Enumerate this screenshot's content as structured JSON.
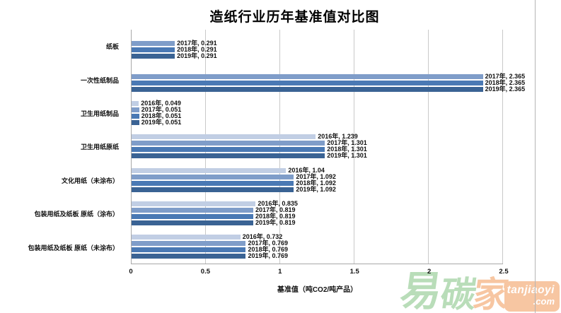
{
  "chart_data": {
    "type": "bar",
    "orientation": "horizontal",
    "title": "造纸行业历年基准值对比图",
    "xlabel": "基准值（吨CO2/吨产品）",
    "xlim": [
      0,
      2.5
    ],
    "xticks": [
      "0",
      "0.5",
      "1",
      "1.5",
      "2",
      "2.5"
    ],
    "grid": true,
    "legend": false,
    "series_colors": [
      {
        "name": "2016年",
        "color": "#c1cee4"
      },
      {
        "name": "2017年",
        "color": "#7f9dc9"
      },
      {
        "name": "2018年",
        "color": "#4a79b4"
      },
      {
        "name": "2019年",
        "color": "#3a6394"
      }
    ],
    "categories": [
      {
        "label": "纸板",
        "bars": [
          {
            "series": "2017年",
            "value": 0.291,
            "label": "2017年, 0.291"
          },
          {
            "series": "2018年",
            "value": 0.291,
            "label": "2018年, 0.291"
          },
          {
            "series": "2019年",
            "value": 0.291,
            "label": "2019年, 0.291"
          }
        ]
      },
      {
        "label": "一次性纸制品",
        "bars": [
          {
            "series": "2017年",
            "value": 2.365,
            "label": "2017年, 2.365"
          },
          {
            "series": "2018年",
            "value": 2.365,
            "label": "2018年, 2.365"
          },
          {
            "series": "2019年",
            "value": 2.365,
            "label": "2019年, 2.365"
          }
        ]
      },
      {
        "label": "卫生用纸制品",
        "bars": [
          {
            "series": "2016年",
            "value": 0.049,
            "label": "2016年, 0.049"
          },
          {
            "series": "2017年",
            "value": 0.051,
            "label": "2017年, 0.051"
          },
          {
            "series": "2018年",
            "value": 0.051,
            "label": "2018年, 0.051"
          },
          {
            "series": "2019年",
            "value": 0.051,
            "label": "2019年, 0.051"
          }
        ]
      },
      {
        "label": "卫生用纸原纸",
        "bars": [
          {
            "series": "2016年",
            "value": 1.239,
            "label": "2016年, 1.239"
          },
          {
            "series": "2017年",
            "value": 1.301,
            "label": "2017年, 1.301"
          },
          {
            "series": "2018年",
            "value": 1.301,
            "label": "2018年, 1.301"
          },
          {
            "series": "2019年",
            "value": 1.301,
            "label": "2019年, 1.301"
          }
        ]
      },
      {
        "label": "文化用纸（未涂布）",
        "bars": [
          {
            "series": "2016年",
            "value": 1.04,
            "label": "2016年, 1.04"
          },
          {
            "series": "2017年",
            "value": 1.092,
            "label": "2017年, 1.092"
          },
          {
            "series": "2018年",
            "value": 1.092,
            "label": "2018年, 1.092"
          },
          {
            "series": "2019年",
            "value": 1.092,
            "label": "2019年, 1.092"
          }
        ]
      },
      {
        "label": "包装用纸及纸板 原纸（涂布）",
        "bars": [
          {
            "series": "2016年",
            "value": 0.835,
            "label": "2016年, 0.835"
          },
          {
            "series": "2017年",
            "value": 0.819,
            "label": "2017年, 0.819"
          },
          {
            "series": "2018年",
            "value": 0.819,
            "label": "2018年, 0.819"
          },
          {
            "series": "2019年",
            "value": 0.819,
            "label": "2019年, 0.819"
          }
        ]
      },
      {
        "label": "包装用纸及纸板 原纸（未涂布）",
        "bars": [
          {
            "series": "2016年",
            "value": 0.732,
            "label": "2016年, 0.732"
          },
          {
            "series": "2017年",
            "value": 0.769,
            "label": "2017年, 0.769"
          },
          {
            "series": "2018年",
            "value": 0.769,
            "label": "2018年, 0.769"
          },
          {
            "series": "2019年",
            "value": 0.769,
            "label": "2019年, 0.769"
          }
        ]
      }
    ]
  },
  "watermark": {
    "brand_chars": [
      "易",
      "碳",
      "家"
    ],
    "char_colors": [
      "#b9ddb9",
      "#b9ddb9",
      "#f7c6a2"
    ],
    "domain_line1": "tanjiaoyi",
    "domain_line2": ".com",
    "box_color": "#f7c6a2",
    "text_color": "#ffffff"
  }
}
